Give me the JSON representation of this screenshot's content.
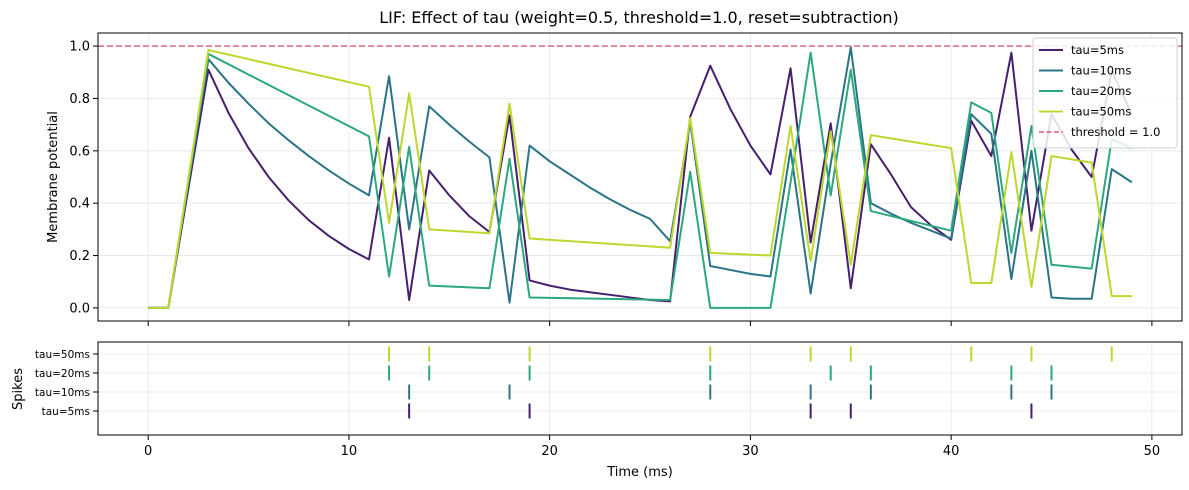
{
  "chart_data": [
    {
      "type": "line",
      "title": "LIF: Effect of tau  (weight=0.5, threshold=1.0, reset=subtraction)",
      "xlabel": "",
      "ylabel": "Membrane potential",
      "xlim": [
        -2.5,
        51.5
      ],
      "ylim": [
        -0.05,
        1.05
      ],
      "xticks": [
        0,
        10,
        20,
        30,
        40,
        50
      ],
      "yticks": [
        0.0,
        0.2,
        0.4,
        0.6,
        0.8,
        1.0
      ],
      "ytick_labels": [
        "0.0",
        "0.2",
        "0.4",
        "0.6",
        "0.8",
        "1.0"
      ],
      "grid": true,
      "legend_position": "top-right",
      "threshold": {
        "value": 1.0,
        "label": "threshold = 1.0",
        "color": "#dd5a7a"
      },
      "series": [
        {
          "name": "tau=5ms",
          "color": "#46206e",
          "x": [
            0,
            1,
            3,
            4,
            5,
            6,
            7,
            8,
            9,
            10,
            11,
            12,
            13,
            14,
            15,
            16,
            17,
            18,
            19,
            20,
            21,
            22,
            23,
            24,
            25,
            26,
            27,
            28,
            29,
            30,
            31,
            32,
            33,
            34,
            35,
            36,
            37,
            38,
            39,
            40,
            41,
            42,
            43,
            44,
            45,
            46,
            47,
            48,
            49
          ],
          "values": [
            0,
            0,
            0.91,
            0.745,
            0.61,
            0.5,
            0.41,
            0.335,
            0.275,
            0.225,
            0.185,
            0.65,
            0.03,
            0.525,
            0.43,
            0.35,
            0.29,
            0.735,
            0.105,
            0.085,
            0.07,
            0.06,
            0.05,
            0.04,
            0.03,
            0.025,
            0.73,
            0.925,
            0.76,
            0.62,
            0.51,
            0.915,
            0.25,
            0.705,
            0.075,
            0.625,
            0.51,
            0.385,
            0.315,
            0.26,
            0.715,
            0.58,
            0.975,
            0.295,
            0.74,
            0.605,
            0.5,
            0.905,
            0.74
          ]
        },
        {
          "name": "tau=10ms",
          "color": "#2b7488",
          "x": [
            0,
            1,
            3,
            4,
            5,
            6,
            7,
            8,
            9,
            10,
            11,
            12,
            13,
            14,
            15,
            16,
            17,
            18,
            19,
            20,
            21,
            22,
            23,
            24,
            25,
            26,
            27,
            28,
            29,
            30,
            31,
            32,
            33,
            34,
            35,
            36,
            37,
            38,
            39,
            40,
            41,
            42,
            43,
            44,
            45,
            46,
            47,
            48,
            49
          ],
          "values": [
            0,
            0,
            0.95,
            0.86,
            0.78,
            0.705,
            0.64,
            0.58,
            0.525,
            0.475,
            0.43,
            0.885,
            0.3,
            0.77,
            0.7,
            0.635,
            0.575,
            0.02,
            0.62,
            0.56,
            0.51,
            0.46,
            0.415,
            0.375,
            0.34,
            0.255,
            0.71,
            0.16,
            0.145,
            0.13,
            0.12,
            0.605,
            0.055,
            0.55,
            0.995,
            0.4,
            0.36,
            0.325,
            0.295,
            0.265,
            0.74,
            0.665,
            0.11,
            0.6,
            0.04,
            0.035,
            0.035,
            0.53,
            0.48
          ]
        },
        {
          "name": "tau=20ms",
          "color": "#2ca87e",
          "x": [
            0,
            1,
            3,
            11,
            12,
            13,
            14,
            17,
            18,
            19,
            26,
            27,
            28,
            31,
            32,
            33,
            34,
            35,
            36,
            40,
            41,
            42,
            43,
            44,
            45,
            47,
            48,
            49
          ],
          "values": [
            0,
            0,
            0.97,
            0.655,
            0.12,
            0.615,
            0.085,
            0.075,
            0.57,
            0.04,
            0.03,
            0.52,
            0.0,
            0.0,
            0.48,
            0.975,
            0.43,
            0.91,
            0.37,
            0.295,
            0.785,
            0.745,
            0.21,
            0.695,
            0.165,
            0.15,
            0.645,
            0.61
          ]
        },
        {
          "name": "tau=50ms",
          "color": "#bdd82c",
          "x": [
            0,
            1,
            3,
            11,
            12,
            13,
            14,
            17,
            18,
            19,
            26,
            27,
            28,
            31,
            32,
            33,
            34,
            35,
            36,
            40,
            41,
            42,
            43,
            44,
            45,
            47,
            48,
            49
          ],
          "values": [
            0,
            0,
            0.985,
            0.845,
            0.325,
            0.82,
            0.3,
            0.285,
            0.78,
            0.265,
            0.23,
            0.725,
            0.21,
            0.2,
            0.695,
            0.18,
            0.675,
            0.165,
            0.66,
            0.61,
            0.095,
            0.095,
            0.595,
            0.08,
            0.58,
            0.555,
            0.045,
            0.045
          ]
        }
      ]
    },
    {
      "type": "scatter",
      "title": "",
      "xlabel": "Time (ms)",
      "ylabel": "Spikes",
      "xlim": [
        -2.5,
        51.5
      ],
      "xticks": [
        0,
        10,
        20,
        30,
        40,
        50
      ],
      "xtick_labels": [
        "0",
        "10",
        "20",
        "30",
        "40",
        "50"
      ],
      "grid": true,
      "marker": "|",
      "rows": [
        {
          "name": "tau=5ms",
          "color": "#46206e",
          "spikes": [
            13,
            19,
            33,
            35,
            44
          ]
        },
        {
          "name": "tau=10ms",
          "color": "#2b7488",
          "spikes": [
            13,
            18,
            28,
            33,
            36,
            43,
            45
          ]
        },
        {
          "name": "tau=20ms",
          "color": "#2ca87e",
          "spikes": [
            12,
            14,
            19,
            28,
            34,
            36,
            43,
            45
          ]
        },
        {
          "name": "tau=50ms",
          "color": "#bdd82c",
          "spikes": [
            12,
            14,
            19,
            28,
            33,
            35,
            41,
            44,
            48
          ]
        }
      ]
    }
  ]
}
